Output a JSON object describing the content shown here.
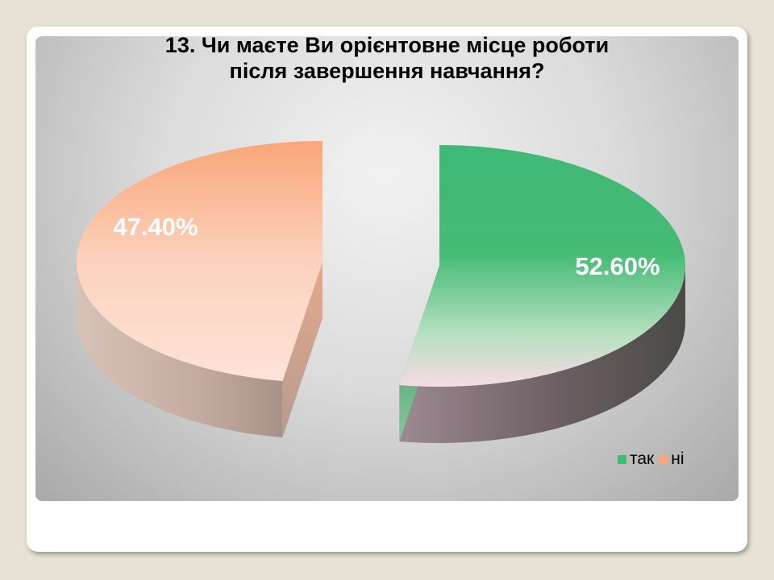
{
  "chart_data": {
    "type": "pie",
    "title": "13. Чи маєте Ви орієнтовне місце роботи після завершення навчання?",
    "title_lines": [
      "13. Чи маєте Ви орієнтовне місце роботи",
      "після завершення навчання?"
    ],
    "categories": [
      "так",
      "ні"
    ],
    "values": [
      52.6,
      47.4
    ],
    "data_labels": [
      "52.60%",
      "47.40%"
    ],
    "colors": [
      "#3fba77",
      "#f9a97c"
    ],
    "style": "3d-exploded",
    "legend_position": "bottom-right"
  }
}
